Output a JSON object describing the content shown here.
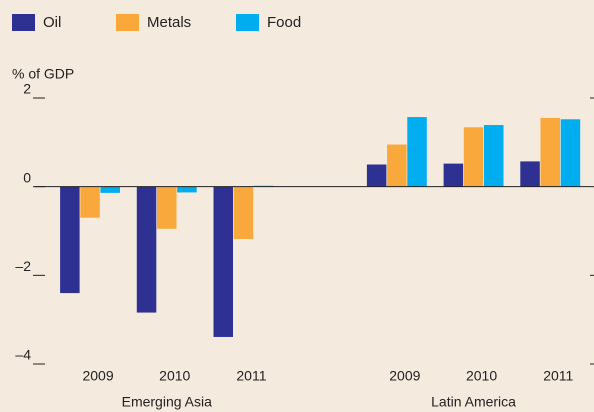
{
  "chart_data": {
    "type": "bar",
    "y_label": "% of GDP",
    "categories": [
      "2009",
      "2010",
      "2011",
      null,
      "2009",
      "2010",
      "2011"
    ],
    "group_labels": [
      "Emerging Asia",
      "Latin America"
    ],
    "series": [
      {
        "name": "Oil",
        "color": "#2e3192",
        "values": [
          -2.4,
          -2.84,
          -3.39,
          null,
          0.5,
          0.52,
          0.57
        ]
      },
      {
        "name": "Metals",
        "color": "#f9a93b",
        "values": [
          -0.7,
          -0.95,
          -1.18,
          null,
          0.95,
          1.34,
          1.55
        ]
      },
      {
        "name": "Food",
        "color": "#00aeef",
        "values": [
          -0.14,
          -0.13,
          0.02,
          null,
          1.57,
          1.39,
          1.52
        ]
      }
    ],
    "ylim": [
      -4,
      2
    ],
    "yticks": [
      2,
      0,
      {
        "value": -2,
        "label": "–2"
      },
      {
        "value": -4,
        "label": "–4"
      }
    ],
    "legend": "top-left"
  }
}
